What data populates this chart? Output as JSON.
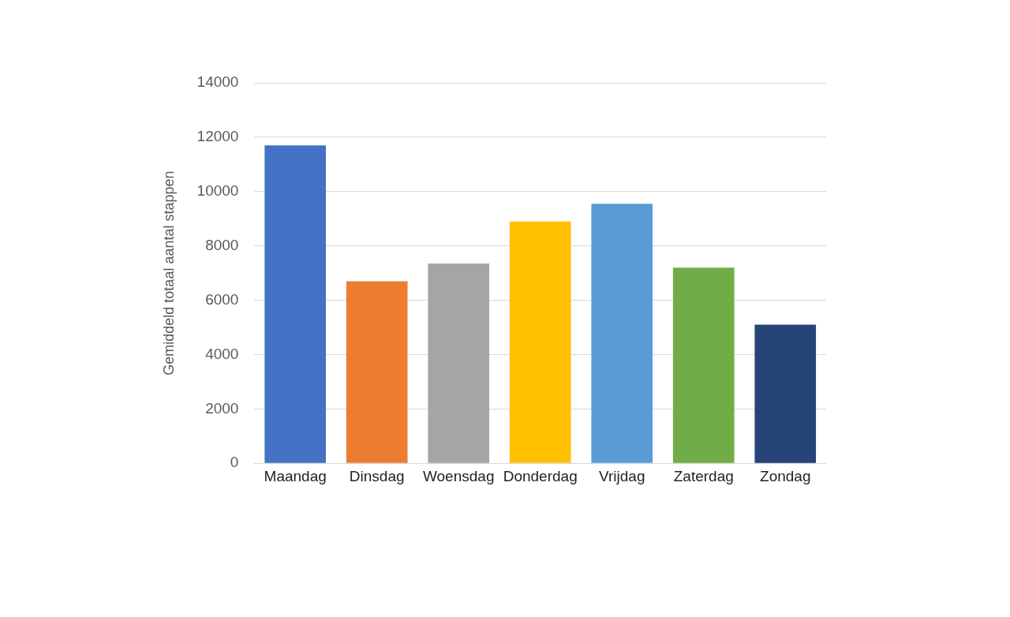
{
  "chart_data": {
    "type": "bar",
    "ylabel": "Gemiddeld totaal aantal stappen",
    "categories": [
      "Maandag",
      "Dinsdag",
      "Woensdag",
      "Donderdag",
      "Vrijdag",
      "Zaterdag",
      "Zondag"
    ],
    "values": [
      11700,
      6700,
      7350,
      8900,
      9550,
      7200,
      5100
    ],
    "colors": [
      "#4472c4",
      "#ed7d31",
      "#a5a5a5",
      "#ffc000",
      "#5b9bd5",
      "#70ad47",
      "#264478"
    ],
    "ylim": [
      0,
      14000
    ],
    "yticks": [
      0,
      2000,
      4000,
      6000,
      8000,
      10000,
      12000,
      14000
    ],
    "grid": "y",
    "legend": false
  }
}
